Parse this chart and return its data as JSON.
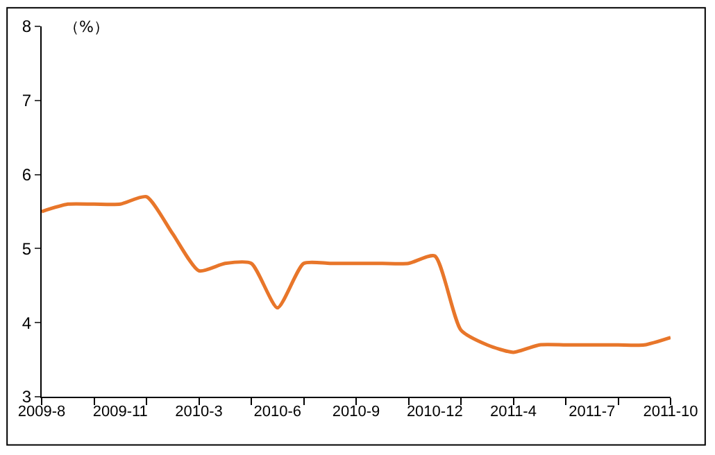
{
  "chart_data": {
    "type": "line",
    "ylabel": "（%）",
    "categories": [
      "2009-8",
      null,
      null,
      "2009-11",
      null,
      null,
      "2010-3",
      null,
      null,
      "2010-6",
      null,
      null,
      "2010-9",
      null,
      null,
      "2010-12",
      null,
      null,
      "2011-4",
      null,
      null,
      "2011-7",
      null,
      null,
      "2011-10"
    ],
    "series": [
      {
        "color": "#e8762a",
        "values": [
          5.5,
          5.6,
          5.6,
          5.6,
          5.7,
          5.2,
          4.7,
          4.8,
          4.8,
          4.2,
          4.8,
          4.8,
          4.8,
          4.8,
          4.8,
          4.9,
          3.9,
          3.7,
          3.6,
          3.7,
          3.7,
          3.7,
          3.7,
          3.7,
          3.8
        ]
      }
    ],
    "ylim": [
      3,
      8
    ],
    "yticks": [
      3,
      4,
      5,
      6,
      7,
      8
    ],
    "legend": false,
    "marker": "none",
    "line_style": "solid"
  }
}
